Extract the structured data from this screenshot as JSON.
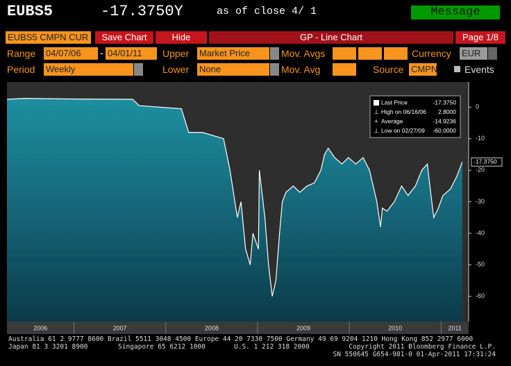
{
  "header": {
    "ticker": "EUBS5",
    "price": "-17.3750Y",
    "as_of": "as of close  4/ 1",
    "message": "Message"
  },
  "toolbar": {
    "security": "EUBS5 CMPN CUR",
    "save": "Save Chart",
    "hide": "Hide",
    "title": "GP - Line Chart",
    "page": "Page 1/8"
  },
  "form": {
    "range_label": "Range",
    "range_start": "04/07/06",
    "range_sep": "-",
    "range_end": "04/01/11",
    "upper_label": "Upper",
    "upper": "Market Price",
    "mov_avgs_label": "Mov. Avgs",
    "currency_label": "Currency",
    "currency": "EUR",
    "period_label": "Period",
    "period": "Weekly",
    "lower_label": "Lower",
    "lower": "None",
    "mov_avg_label": "Mov. Avg",
    "source_label": "Source",
    "source": "CMPN",
    "events_label": "Events"
  },
  "chart_data": {
    "type": "line",
    "x": [
      2006.27,
      2006.46,
      2006.95,
      2007.64,
      2007.71,
      2008.17,
      2008.25,
      2008.4,
      2008.63,
      2008.7,
      2008.78,
      2008.82,
      2008.87,
      2008.92,
      2008.95,
      2009.01,
      2009.02,
      2009.08,
      2009.12,
      2009.16,
      2009.2,
      2009.24,
      2009.27,
      2009.31,
      2009.39,
      2009.46,
      2009.54,
      2009.62,
      2009.69,
      2009.73,
      2009.77,
      2009.84,
      2009.92,
      2009.99,
      2010.07,
      2010.15,
      2010.22,
      2010.3,
      2010.34,
      2010.36,
      2010.41,
      2010.49,
      2010.57,
      2010.64,
      2010.72,
      2010.79,
      2010.85,
      2010.89,
      2010.92,
      2010.97,
      2011.02,
      2011.1,
      2011.17,
      2011.23
    ],
    "values": [
      2.5,
      2.8,
      2.6,
      2.5,
      0.5,
      -0.5,
      -8,
      -8,
      -10,
      -20,
      -35,
      -30,
      -45,
      -50,
      -40,
      -45,
      -20,
      -35,
      -50,
      -60,
      -55,
      -40,
      -30,
      -27,
      -25,
      -27,
      -25,
      -24,
      -20,
      -15,
      -13,
      -16,
      -18,
      -16,
      -18,
      -16,
      -20,
      -30,
      -38,
      -32,
      -33,
      -30,
      -25,
      -28,
      -25,
      -20,
      -18,
      -28,
      -35,
      -32,
      -28,
      -26,
      -22,
      -17.375
    ],
    "color": "#ffffff",
    "xlim": [
      2006.27,
      2011.3
    ],
    "ylim": [
      -68,
      8
    ],
    "xticks": [
      2006,
      2007,
      2008,
      2009,
      2010,
      2011
    ],
    "yticks": [
      0,
      -10,
      -20,
      -30,
      -40,
      -50,
      -60
    ],
    "last_label": "-17.3750",
    "legend": [
      {
        "label": "Last Price",
        "value": "-17.3750"
      },
      {
        "label": "High on 06/16/06",
        "value": "2.8000"
      },
      {
        "label": "Average",
        "value": "-14.9236"
      },
      {
        "label": "Low on 02/27/09",
        "value": "-60.0000"
      }
    ]
  },
  "footer": {
    "line1": "Australia 61 2 9777 8600 Brazil 5511 3048 4500 Europe 44 20 7330 7500 Germany 49 69 9204 1210 Hong Kong 852 2977 6000",
    "japan": "Japan 81 3 3201 8900",
    "singapore": "Singapore 65 6212 1000",
    "us": "U.S. 1 212 318 2000",
    "copyright": "Copyright 2011 Bloomberg Finance L.P.",
    "sn": "SN 550645 G654-981-0 01-Apr-2011 17:31:24"
  }
}
